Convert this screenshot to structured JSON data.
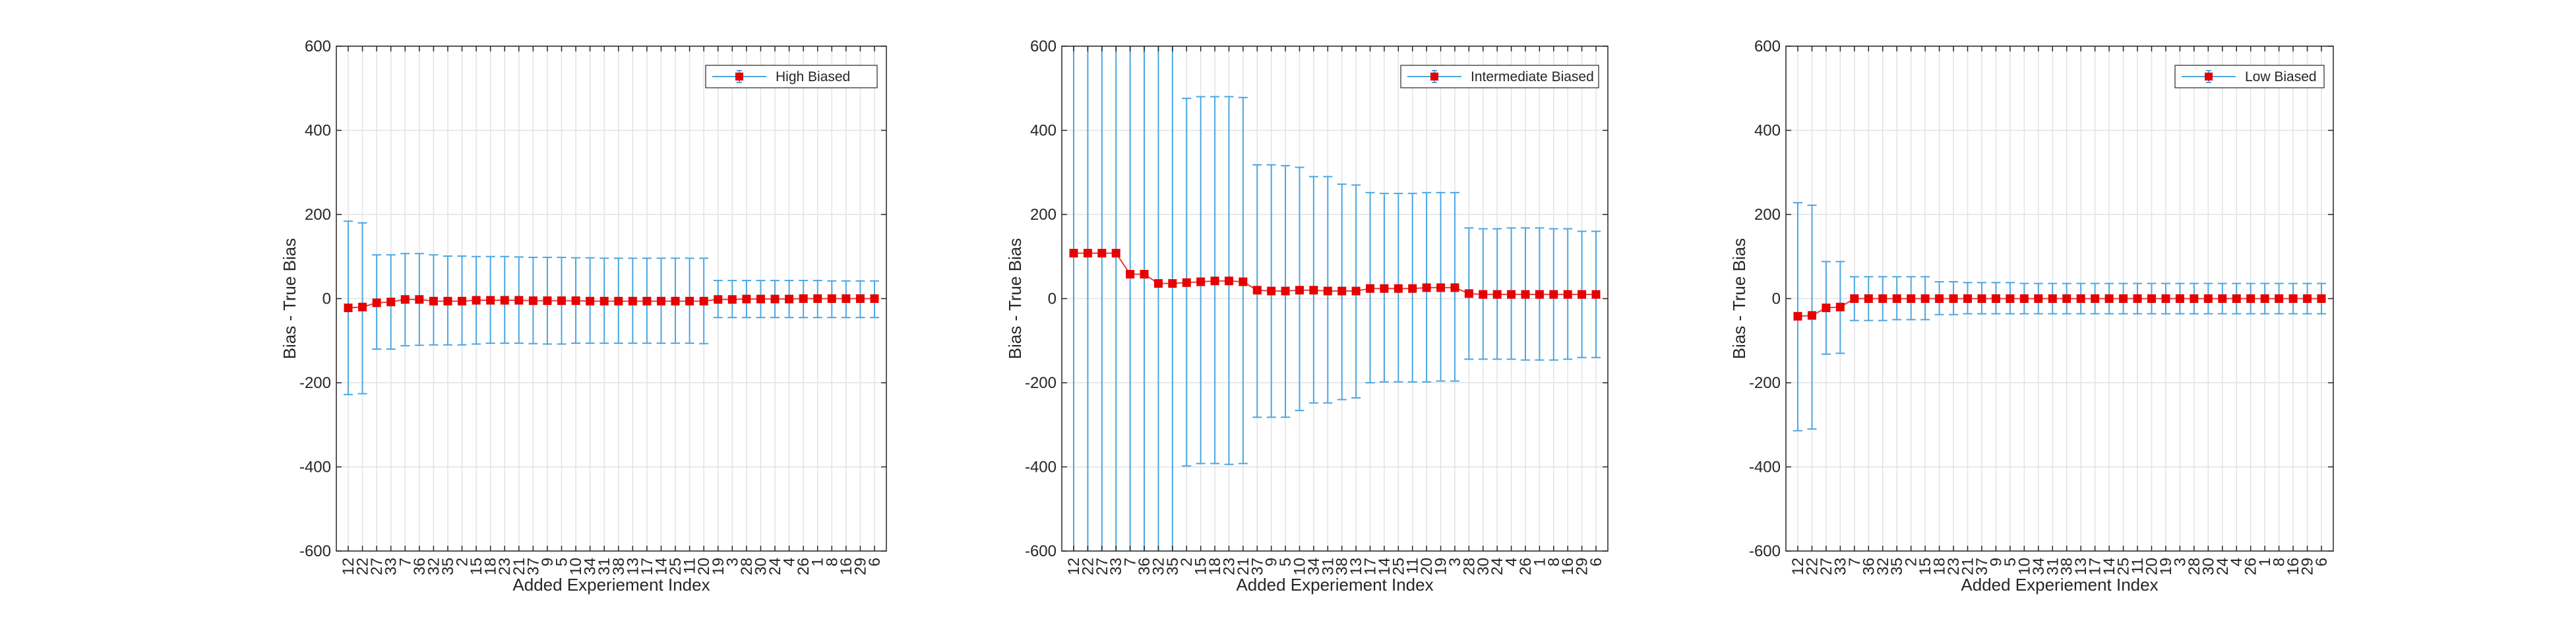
{
  "colors": {
    "errorbar": "#4DA6E0",
    "marker": "#E60000",
    "line": "#E04040",
    "grid": "#E3E3E3",
    "axes": "#262626",
    "background": "#FFFFFF"
  },
  "chart_data": [
    {
      "type": "line",
      "error_bars": true,
      "xlabel": "Added Experiement Index",
      "ylabel": "Bias - True Bias",
      "ylim": [
        -600,
        600
      ],
      "yticks": [
        -600,
        -400,
        -200,
        0,
        200,
        400,
        600
      ],
      "grid": true,
      "legend_position": "top-right",
      "categories": [
        "12",
        "22",
        "27",
        "33",
        "7",
        "36",
        "32",
        "35",
        "2",
        "15",
        "18",
        "23",
        "21",
        "37",
        "9",
        "5",
        "10",
        "34",
        "31",
        "38",
        "13",
        "17",
        "14",
        "25",
        "11",
        "20",
        "19",
        "3",
        "28",
        "30",
        "24",
        "4",
        "26",
        "1",
        "8",
        "16",
        "29",
        "6"
      ],
      "series": [
        {
          "name": "High Biased",
          "values": [
            -22,
            -20,
            -10,
            -8,
            -2,
            -2,
            -6,
            -6,
            -6,
            -4,
            -4,
            -4,
            -4,
            -5,
            -5,
            -5,
            -5,
            -6,
            -6,
            -6,
            -6,
            -6,
            -6,
            -6,
            -6,
            -6,
            -2,
            -2,
            -1,
            -1,
            -1,
            -1,
            0,
            0,
            0,
            0,
            0,
            0
          ],
          "upper": [
            184,
            180,
            104,
            104,
            107,
            107,
            104,
            101,
            101,
            100,
            100,
            100,
            99,
            98,
            98,
            98,
            97,
            97,
            96,
            96,
            96,
            96,
            96,
            96,
            96,
            96,
            43,
            43,
            43,
            43,
            43,
            43,
            43,
            43,
            42,
            42,
            42,
            42
          ],
          "lower": [
            -228,
            -226,
            -120,
            -120,
            -112,
            -111,
            -110,
            -110,
            -110,
            -108,
            -106,
            -106,
            -106,
            -107,
            -108,
            -108,
            -106,
            -106,
            -106,
            -106,
            -106,
            -106,
            -106,
            -106,
            -106,
            -107,
            -45,
            -45,
            -45,
            -45,
            -45,
            -45,
            -45,
            -45,
            -45,
            -45,
            -45,
            -45
          ]
        }
      ]
    },
    {
      "type": "line",
      "error_bars": true,
      "xlabel": "Added Experiement Index",
      "ylabel": "Bias - True Bias",
      "ylim": [
        -600,
        600
      ],
      "yticks": [
        -600,
        -400,
        -200,
        0,
        200,
        400,
        600
      ],
      "grid": true,
      "legend_position": "top-right",
      "categories": [
        "12",
        "22",
        "27",
        "33",
        "7",
        "36",
        "32",
        "35",
        "2",
        "15",
        "18",
        "23",
        "21",
        "37",
        "9",
        "5",
        "10",
        "34",
        "31",
        "38",
        "13",
        "17",
        "14",
        "25",
        "11",
        "20",
        "19",
        "3",
        "28",
        "30",
        "24",
        "4",
        "26",
        "1",
        "8",
        "16",
        "29",
        "6"
      ],
      "series": [
        {
          "name": "Intermediate Biased",
          "values": [
            108,
            108,
            108,
            108,
            58,
            58,
            36,
            36,
            38,
            40,
            42,
            42,
            40,
            20,
            18,
            18,
            20,
            20,
            18,
            18,
            18,
            24,
            24,
            24,
            24,
            26,
            26,
            26,
            12,
            10,
            10,
            10,
            10,
            10,
            10,
            10,
            10,
            10
          ],
          "upper": [
            700,
            700,
            700,
            700,
            700,
            700,
            700,
            700,
            476,
            480,
            480,
            480,
            478,
            318,
            318,
            316,
            312,
            290,
            290,
            272,
            270,
            252,
            250,
            250,
            250,
            252,
            252,
            252,
            168,
            166,
            166,
            168,
            168,
            168,
            166,
            166,
            160,
            160
          ],
          "lower": [
            -700,
            -700,
            -700,
            -700,
            -700,
            -700,
            -700,
            -700,
            -398,
            -392,
            -392,
            -394,
            -392,
            -282,
            -282,
            -282,
            -266,
            -248,
            -248,
            -240,
            -236,
            -200,
            -198,
            -198,
            -198,
            -198,
            -196,
            -196,
            -144,
            -144,
            -144,
            -144,
            -146,
            -146,
            -146,
            -144,
            -140,
            -140
          ]
        }
      ]
    },
    {
      "type": "line",
      "error_bars": true,
      "xlabel": "Added Experiement Index",
      "ylabel": "Bias - True Bias",
      "ylim": [
        -600,
        600
      ],
      "yticks": [
        -600,
        -400,
        -200,
        0,
        200,
        400,
        600
      ],
      "grid": true,
      "legend_position": "top-right",
      "categories": [
        "12",
        "22",
        "27",
        "33",
        "7",
        "36",
        "32",
        "35",
        "2",
        "15",
        "18",
        "23",
        "21",
        "37",
        "9",
        "5",
        "10",
        "34",
        "31",
        "38",
        "13",
        "17",
        "14",
        "25",
        "11",
        "20",
        "19",
        "3",
        "28",
        "30",
        "24",
        "4",
        "26",
        "1",
        "8",
        "16",
        "29",
        "6"
      ],
      "series": [
        {
          "name": "Low Biased",
          "values": [
            -42,
            -40,
            -22,
            -20,
            0,
            0,
            0,
            0,
            0,
            0,
            0,
            0,
            0,
            0,
            0,
            0,
            0,
            0,
            0,
            0,
            0,
            0,
            0,
            0,
            0,
            0,
            0,
            0,
            0,
            0,
            0,
            0,
            0,
            0,
            0,
            0,
            0,
            0
          ],
          "upper": [
            228,
            222,
            88,
            88,
            52,
            52,
            52,
            52,
            52,
            52,
            40,
            40,
            38,
            38,
            38,
            38,
            36,
            36,
            36,
            36,
            36,
            36,
            36,
            36,
            36,
            36,
            36,
            36,
            36,
            36,
            36,
            36,
            36,
            36,
            36,
            36,
            36,
            36
          ],
          "lower": [
            -314,
            -310,
            -132,
            -130,
            -52,
            -52,
            -52,
            -50,
            -50,
            -50,
            -38,
            -38,
            -36,
            -36,
            -36,
            -36,
            -36,
            -36,
            -36,
            -36,
            -36,
            -36,
            -36,
            -36,
            -36,
            -36,
            -36,
            -36,
            -36,
            -36,
            -36,
            -36,
            -36,
            -36,
            -36,
            -36,
            -36,
            -36
          ]
        }
      ]
    }
  ]
}
